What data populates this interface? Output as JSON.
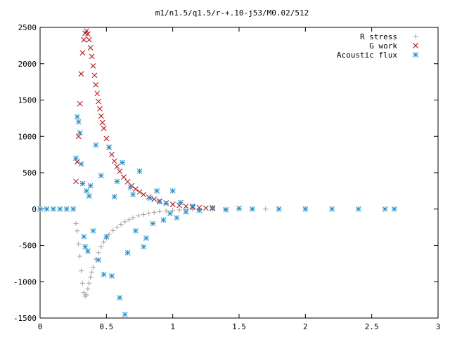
{
  "chart_data": {
    "type": "scatter",
    "title": "m1/n1.5/q1.5/r-+.10-j53/M0.02/512",
    "xlabel": "",
    "ylabel": "",
    "xlim": [
      0,
      3
    ],
    "ylim": [
      -1500,
      2500
    ],
    "x_ticks": [
      0,
      0.5,
      1,
      1.5,
      2,
      2.5,
      3
    ],
    "x_tick_labels": [
      "0",
      "0.5",
      "1",
      "1.5",
      "2",
      "2.5",
      "3"
    ],
    "y_ticks": [
      -1500,
      -1000,
      -500,
      0,
      500,
      1000,
      1500,
      2000,
      2500
    ],
    "y_tick_labels": [
      "-1500",
      "-1000",
      "-500",
      "0",
      "500",
      "1000",
      "1500",
      "2000",
      "2500"
    ],
    "grid": false,
    "legend_position": "top-right",
    "series": [
      {
        "name": "R stress",
        "marker": "plus",
        "color": "#a0a0a0",
        "x": [
          0.27,
          0.28,
          0.29,
          0.3,
          0.31,
          0.32,
          0.33,
          0.34,
          0.35,
          0.36,
          0.37,
          0.38,
          0.39,
          0.4,
          0.42,
          0.44,
          0.46,
          0.48,
          0.5,
          0.52,
          0.55,
          0.58,
          0.61,
          0.64,
          0.67,
          0.7,
          0.74,
          0.78,
          0.82,
          0.86,
          0.9,
          0.95,
          1.0,
          1.05,
          1.1,
          1.15,
          1.2,
          1.3,
          1.4,
          1.5,
          1.6,
          1.7,
          1.8
        ],
        "y": [
          -200,
          -300,
          -480,
          -650,
          -850,
          -1020,
          -1150,
          -1200,
          -1180,
          -1100,
          -1020,
          -940,
          -870,
          -800,
          -690,
          -600,
          -520,
          -455,
          -400,
          -350,
          -295,
          -250,
          -210,
          -175,
          -145,
          -120,
          -95,
          -75,
          -58,
          -45,
          -34,
          -25,
          -18,
          -12,
          -8,
          -5,
          -3,
          -1,
          0,
          0,
          0,
          0,
          0
        ]
      },
      {
        "name": "G work",
        "marker": "cross",
        "color": "#cc0000",
        "x": [
          0.27,
          0.28,
          0.29,
          0.3,
          0.31,
          0.32,
          0.33,
          0.34,
          0.35,
          0.36,
          0.37,
          0.38,
          0.39,
          0.4,
          0.41,
          0.42,
          0.43,
          0.44,
          0.45,
          0.46,
          0.47,
          0.48,
          0.5,
          0.52,
          0.54,
          0.56,
          0.58,
          0.6,
          0.63,
          0.66,
          0.69,
          0.72,
          0.75,
          0.78,
          0.82,
          0.86,
          0.9,
          0.95,
          1.0,
          1.05,
          1.1,
          1.15,
          1.2,
          1.25,
          1.3
        ],
        "y": [
          380,
          650,
          1000,
          1450,
          1860,
          2150,
          2330,
          2420,
          2450,
          2410,
          2330,
          2220,
          2100,
          1970,
          1840,
          1710,
          1590,
          1480,
          1380,
          1280,
          1190,
          1110,
          970,
          850,
          750,
          660,
          585,
          520,
          440,
          375,
          320,
          275,
          235,
          200,
          165,
          135,
          110,
          85,
          65,
          50,
          38,
          28,
          20,
          14,
          10
        ]
      },
      {
        "name": "Acoustic flux",
        "marker": "star",
        "color": "#1f8fd8",
        "x": [
          0.0,
          0.05,
          0.1,
          0.15,
          0.2,
          0.25,
          0.27,
          0.28,
          0.29,
          0.3,
          0.31,
          0.32,
          0.33,
          0.34,
          0.35,
          0.36,
          0.37,
          0.38,
          0.4,
          0.42,
          0.44,
          0.46,
          0.48,
          0.5,
          0.52,
          0.54,
          0.56,
          0.58,
          0.6,
          0.62,
          0.64,
          0.66,
          0.68,
          0.7,
          0.72,
          0.75,
          0.78,
          0.8,
          0.83,
          0.85,
          0.88,
          0.9,
          0.93,
          0.95,
          0.98,
          1.0,
          1.03,
          1.06,
          1.1,
          1.15,
          1.2,
          1.3,
          1.4,
          1.5,
          1.6,
          1.8,
          2.0,
          2.2,
          2.4,
          2.6,
          2.67
        ],
        "y": [
          0,
          0,
          0,
          0,
          0,
          0,
          700,
          1270,
          1200,
          1050,
          620,
          350,
          -380,
          -520,
          250,
          -580,
          180,
          320,
          -300,
          880,
          -700,
          460,
          -900,
          -380,
          850,
          -920,
          170,
          380,
          -1220,
          640,
          -1450,
          -600,
          300,
          200,
          -300,
          520,
          -520,
          -400,
          150,
          -200,
          250,
          100,
          -150,
          80,
          -60,
          250,
          -120,
          90,
          -40,
          40,
          -20,
          20,
          -10,
          10,
          0,
          0,
          0,
          0,
          0,
          0,
          0
        ]
      }
    ]
  }
}
